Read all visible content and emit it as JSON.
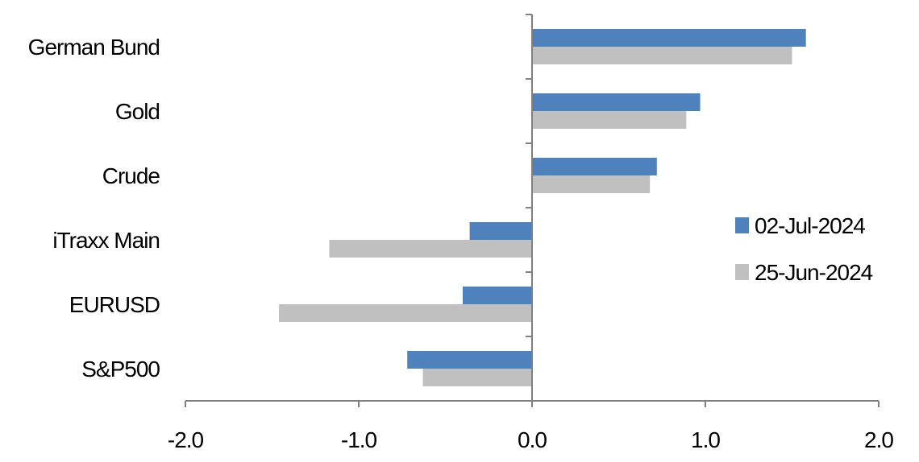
{
  "chart_data": {
    "type": "bar",
    "orientation": "horizontal",
    "categories": [
      "German Bund",
      "Gold",
      "Crude",
      "iTraxx Main",
      "EURUSD",
      "S&P500"
    ],
    "series": [
      {
        "name": "02-Jul-2024",
        "color": "#4f81bd",
        "values": [
          1.58,
          0.97,
          0.72,
          -0.36,
          -0.4,
          -0.72
        ]
      },
      {
        "name": "25-Jun-2024",
        "color": "#c0c0c0",
        "values": [
          1.5,
          0.89,
          0.68,
          -1.17,
          -1.46,
          -0.63
        ]
      }
    ],
    "xlim": [
      -2.0,
      2.0
    ],
    "x_ticks": [
      "-2.0",
      "-1.0",
      "0.0",
      "1.0",
      "2.0"
    ],
    "title": "",
    "xlabel": "",
    "ylabel": "",
    "grid": false,
    "legend_position": "right"
  }
}
